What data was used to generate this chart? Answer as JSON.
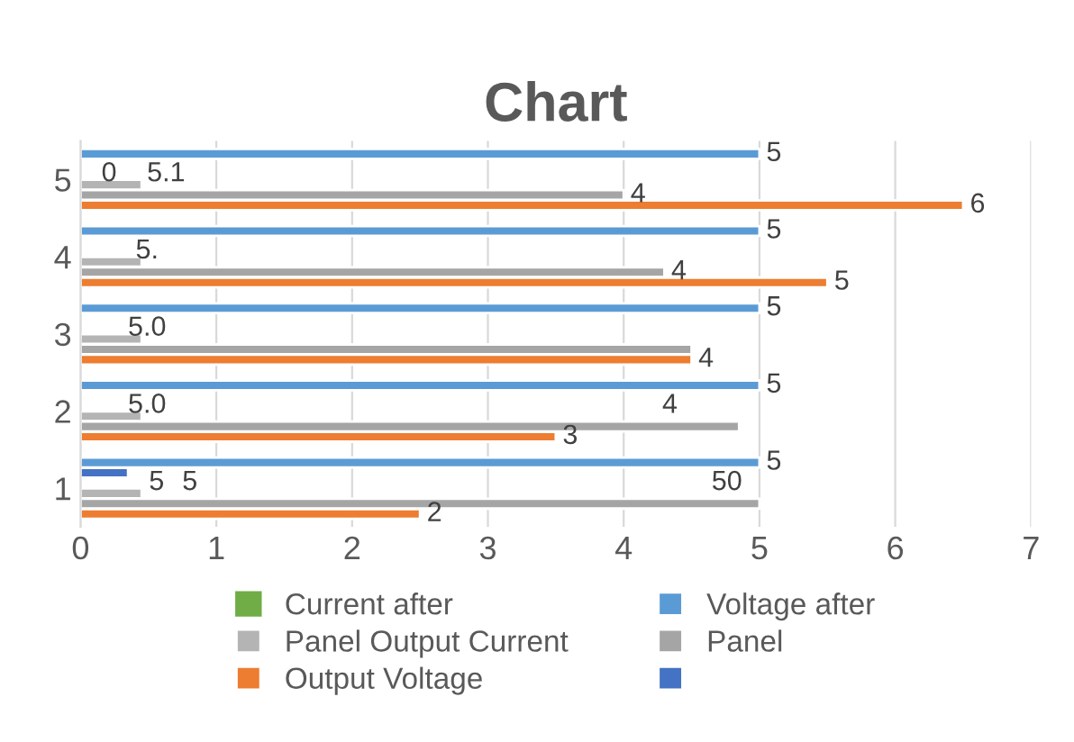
{
  "chart_data": {
    "type": "bar",
    "orientation": "horizontal",
    "title": "Chart",
    "categories": [
      "5",
      "4",
      "3",
      "2",
      "1"
    ],
    "series": [
      {
        "name": "Voltage after",
        "color": "#5b9bd5",
        "values": [
          5,
          5,
          5,
          5,
          5
        ],
        "value_labels": [
          "5",
          "5",
          "5",
          "5",
          "5"
        ]
      },
      {
        "color": "#4472c4",
        "values": [
          null,
          null,
          null,
          null,
          0.35
        ]
      },
      {
        "name": "Current after",
        "color": "#70ad47",
        "values": [
          null,
          null,
          null,
          null,
          null
        ]
      },
      {
        "name": "Panel Output Current",
        "color": "#b4b4b4",
        "values": [
          0.45,
          0.45,
          0.45,
          0.45,
          0.45
        ]
      },
      {
        "name": "Panel",
        "color": "#a5a5a5",
        "values": [
          4.0,
          4.3,
          4.5,
          4.85,
          5.0
        ],
        "value_labels": [
          "4",
          "4",
          null,
          null,
          null
        ]
      },
      {
        "name": "Output Voltage",
        "color": "#ed7d31",
        "values": [
          6.5,
          5.5,
          4.5,
          3.5,
          2.5
        ],
        "value_labels": [
          "6",
          "5",
          "4",
          "3",
          "2"
        ]
      }
    ],
    "annotations": [
      "0",
      "5.1",
      "5.",
      "5.0",
      "5.0",
      "4",
      "5",
      "5",
      "50"
    ],
    "xlim": [
      0,
      7
    ],
    "xticks": [
      0,
      1,
      2,
      3,
      4,
      5,
      6,
      7
    ],
    "grid": "x",
    "legend": "bottom"
  }
}
